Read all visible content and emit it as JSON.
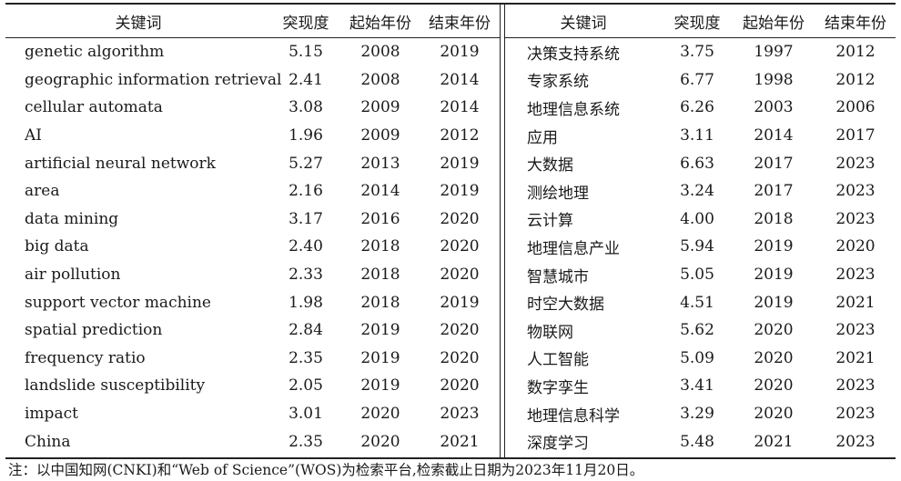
{
  "headers": {
    "keyword": "关键词",
    "strength": "突现度",
    "start": "起始年份",
    "end": "结束年份"
  },
  "left_rows": [
    {
      "keyword": "genetic algorithm",
      "strength": "5.15",
      "start": "2008",
      "end": "2019"
    },
    {
      "keyword": "geographic information retrieval",
      "strength": "2.41",
      "start": "2008",
      "end": "2014"
    },
    {
      "keyword": "cellular automata",
      "strength": "3.08",
      "start": "2009",
      "end": "2014"
    },
    {
      "keyword": "AI",
      "strength": "1.96",
      "start": "2009",
      "end": "2012"
    },
    {
      "keyword": "artificial neural network",
      "strength": "5.27",
      "start": "2013",
      "end": "2019"
    },
    {
      "keyword": "area",
      "strength": "2.16",
      "start": "2014",
      "end": "2019"
    },
    {
      "keyword": "data mining",
      "strength": "3.17",
      "start": "2016",
      "end": "2020"
    },
    {
      "keyword": "big data",
      "strength": "2.40",
      "start": "2018",
      "end": "2020"
    },
    {
      "keyword": "air pollution",
      "strength": "2.33",
      "start": "2018",
      "end": "2020"
    },
    {
      "keyword": "support vector machine",
      "strength": "1.98",
      "start": "2018",
      "end": "2019"
    },
    {
      "keyword": "spatial prediction",
      "strength": "2.84",
      "start": "2019",
      "end": "2020"
    },
    {
      "keyword": "frequency ratio",
      "strength": "2.35",
      "start": "2019",
      "end": "2020"
    },
    {
      "keyword": "landslide susceptibility",
      "strength": "2.05",
      "start": "2019",
      "end": "2020"
    },
    {
      "keyword": "impact",
      "strength": "3.01",
      "start": "2020",
      "end": "2023"
    },
    {
      "keyword": "China",
      "strength": "2.35",
      "start": "2020",
      "end": "2021"
    }
  ],
  "right_rows": [
    {
      "keyword": "决策支持系统",
      "strength": "3.75",
      "start": "1997",
      "end": "2012"
    },
    {
      "keyword": "专家系统",
      "strength": "6.77",
      "start": "1998",
      "end": "2012"
    },
    {
      "keyword": "地理信息系统",
      "strength": "6.26",
      "start": "2003",
      "end": "2006"
    },
    {
      "keyword": "应用",
      "strength": "3.11",
      "start": "2014",
      "end": "2017"
    },
    {
      "keyword": "大数据",
      "strength": "6.63",
      "start": "2017",
      "end": "2023"
    },
    {
      "keyword": "测绘地理",
      "strength": "3.24",
      "start": "2017",
      "end": "2023"
    },
    {
      "keyword": "云计算",
      "strength": "4.00",
      "start": "2018",
      "end": "2023"
    },
    {
      "keyword": "地理信息产业",
      "strength": "5.94",
      "start": "2019",
      "end": "2020"
    },
    {
      "keyword": "智慧城市",
      "strength": "5.05",
      "start": "2019",
      "end": "2023"
    },
    {
      "keyword": "时空大数据",
      "strength": "4.51",
      "start": "2019",
      "end": "2021"
    },
    {
      "keyword": "物联网",
      "strength": "5.62",
      "start": "2020",
      "end": "2023"
    },
    {
      "keyword": "人工智能",
      "strength": "5.09",
      "start": "2020",
      "end": "2021"
    },
    {
      "keyword": "数字孪生",
      "strength": "3.41",
      "start": "2020",
      "end": "2023"
    },
    {
      "keyword": "地理信息科学",
      "strength": "3.29",
      "start": "2020",
      "end": "2023"
    },
    {
      "keyword": "深度学习",
      "strength": "5.48",
      "start": "2021",
      "end": "2023"
    }
  ],
  "note": "注：以中国知网(CNKI)和“Web of Science”(WOS)为检索平台,检索截止日期为2023年11月20日。"
}
